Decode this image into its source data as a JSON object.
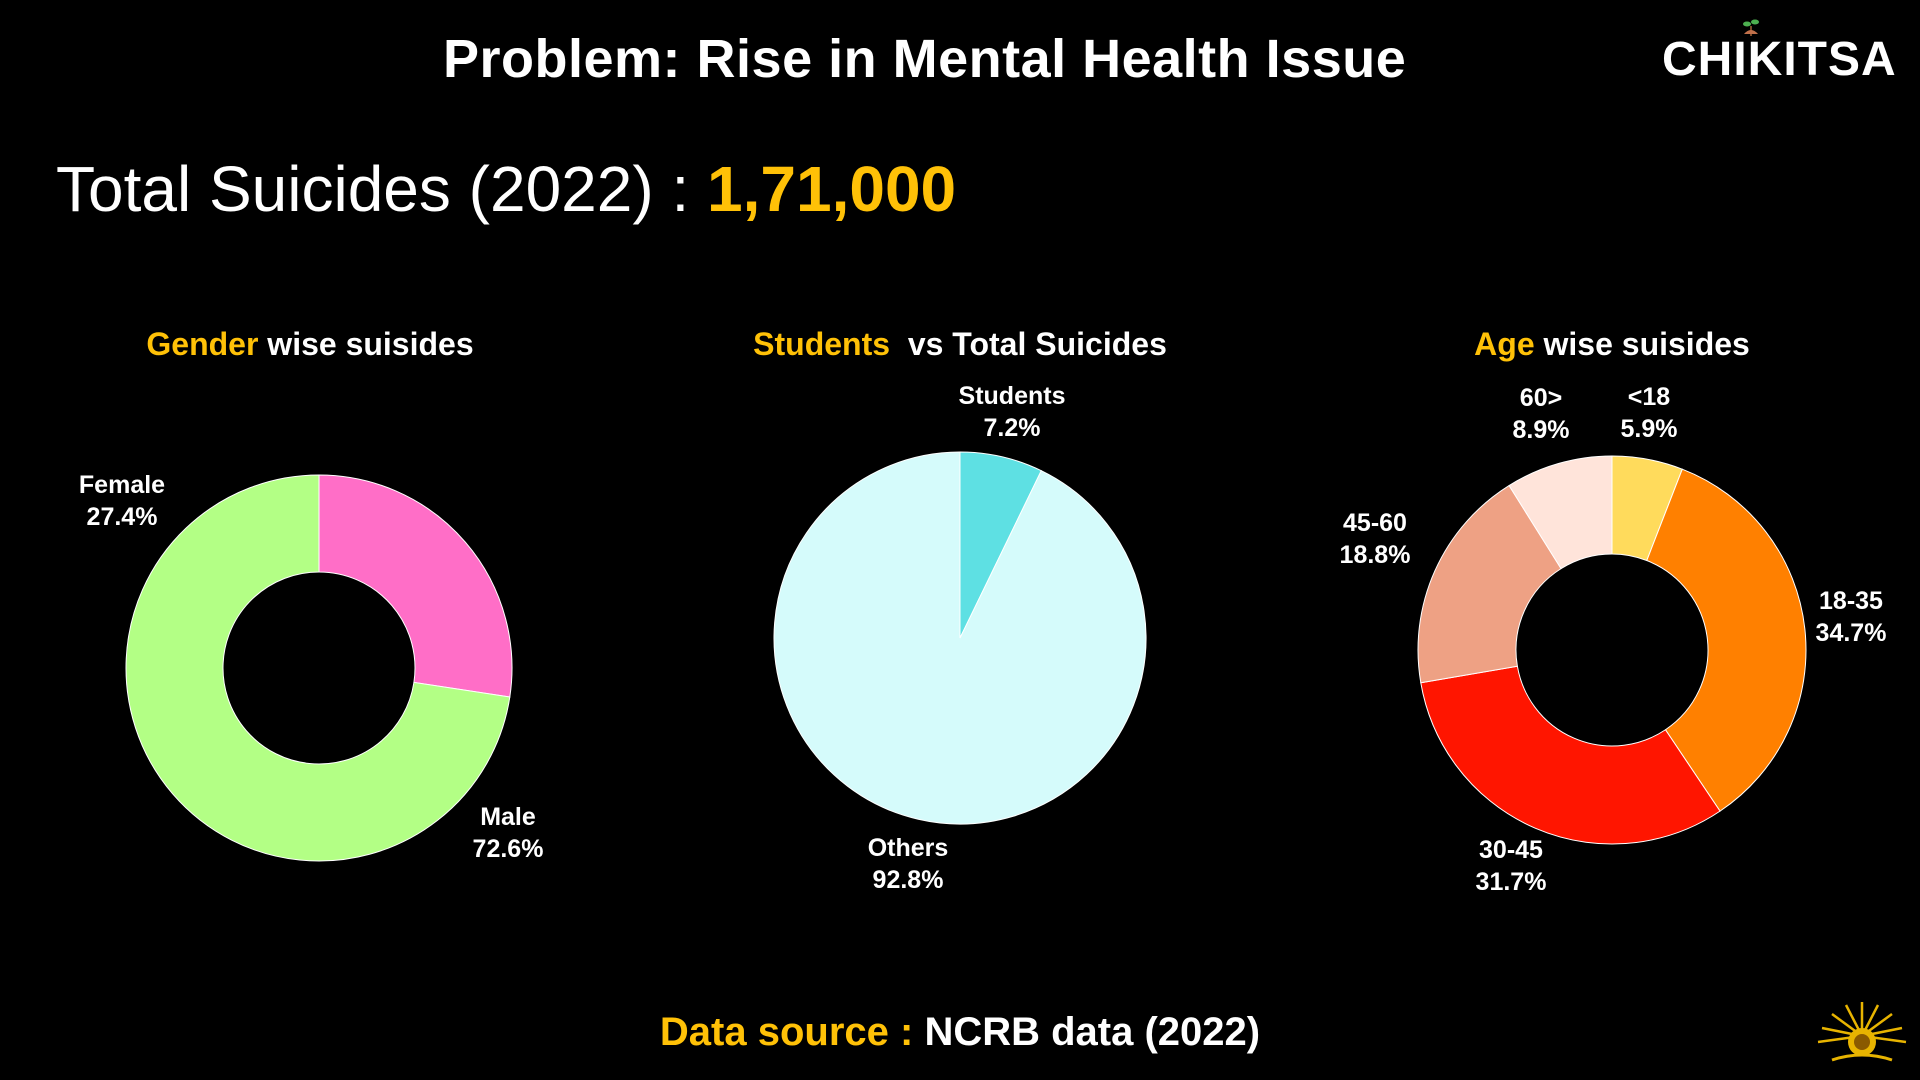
{
  "header": {
    "title": "Problem: Rise in Mental Health Issue",
    "brand": "CHIKITSA"
  },
  "headline": {
    "label": "Total Suicides (2022) : ",
    "value": "1,71,000"
  },
  "footer": {
    "source_label": "Data source : ",
    "source_value": "NCRB data (2022)"
  },
  "colors": {
    "accent": "#ffc107",
    "background": "#000000"
  },
  "chart_data": [
    {
      "type": "pie",
      "variant": "donut",
      "title_highlight": "Gender",
      "title_rest": " wise suisides",
      "slices": [
        {
          "label": "Female",
          "value": 27.4,
          "display": "27.4%",
          "color": "#ff6ec7"
        },
        {
          "label": "Male",
          "value": 72.6,
          "display": "72.6%",
          "color": "#b3ff85"
        }
      ]
    },
    {
      "type": "pie",
      "variant": "pie",
      "title_highlight": "Students",
      "title_rest": "  vs Total Suicides",
      "slices": [
        {
          "label": "Students",
          "value": 7.2,
          "display": "7.2%",
          "color": "#5ee0e3"
        },
        {
          "label": "Others",
          "value": 92.8,
          "display": "92.8%",
          "color": "#d5fbfb"
        }
      ]
    },
    {
      "type": "pie",
      "variant": "donut",
      "title_highlight": "Age",
      "title_rest": " wise suisides",
      "slices": [
        {
          "label": "<18",
          "value": 5.9,
          "display": "5.9%",
          "color": "#ffdb5c"
        },
        {
          "label": "18-35",
          "value": 34.7,
          "display": "34.7%",
          "color": "#ff8000"
        },
        {
          "label": "30-45",
          "value": 31.7,
          "display": "31.7%",
          "color": "#ff1500"
        },
        {
          "label": "45-60",
          "value": 18.8,
          "display": "18.8%",
          "color": "#eea184"
        },
        {
          "label": "60>",
          "value": 8.9,
          "display": "8.9%",
          "color": "#ffe4da"
        }
      ]
    }
  ]
}
